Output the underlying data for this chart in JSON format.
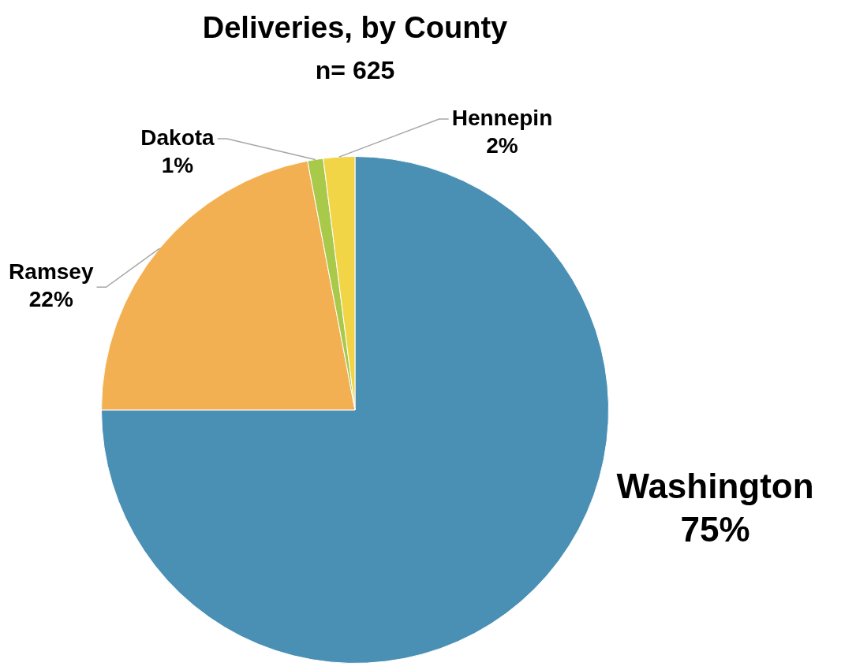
{
  "chart_data": {
    "type": "pie",
    "title": "Deliveries, by County",
    "subtitle": "n= 625",
    "categories": [
      "Washington",
      "Ramsey",
      "Dakota",
      "Hennepin"
    ],
    "values": [
      75,
      22,
      1,
      2
    ],
    "colors": [
      "#4a8fb4",
      "#f2b052",
      "#a9c94a",
      "#f2d447"
    ],
    "value_labels": [
      "75%",
      "22%",
      "1%",
      "2%"
    ],
    "legend": false
  }
}
